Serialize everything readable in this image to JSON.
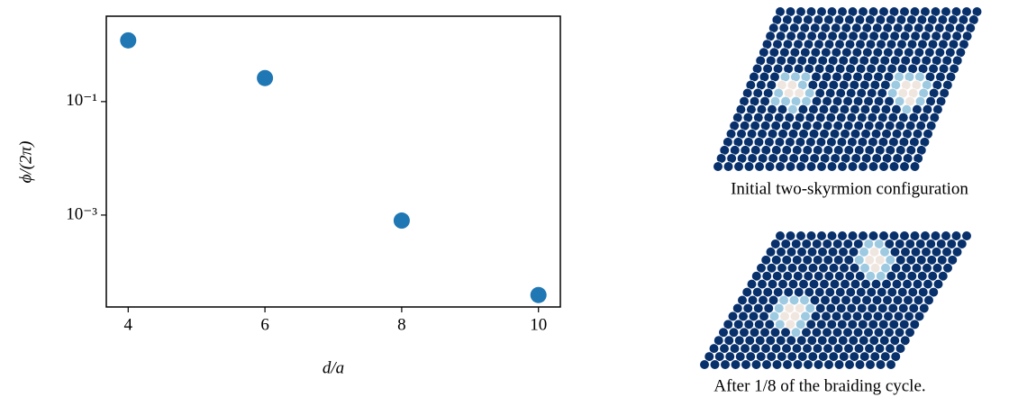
{
  "chart_data": {
    "type": "scatter",
    "x": [
      4,
      6,
      8,
      10
    ],
    "values": [
      1.2,
      0.26,
      0.0008,
      3.9e-05
    ],
    "color": "#1f77b4",
    "xlim": [
      3.68,
      10.32
    ],
    "xticks": [
      4,
      6,
      8,
      10
    ],
    "ylim": [
      2.4e-05,
      3.2
    ],
    "log_y": true,
    "yticks": [
      {
        "value": 0.1,
        "label": "10⁻¹"
      },
      {
        "value": 0.001,
        "label": "10⁻³"
      }
    ],
    "xlabel": "d/a",
    "ylabel": "ϕ/(2π)"
  },
  "images": [
    {
      "caption": "Initial two-skyrmion configuration"
    },
    {
      "caption": "After 1/8 of the braiding cycle."
    }
  ]
}
